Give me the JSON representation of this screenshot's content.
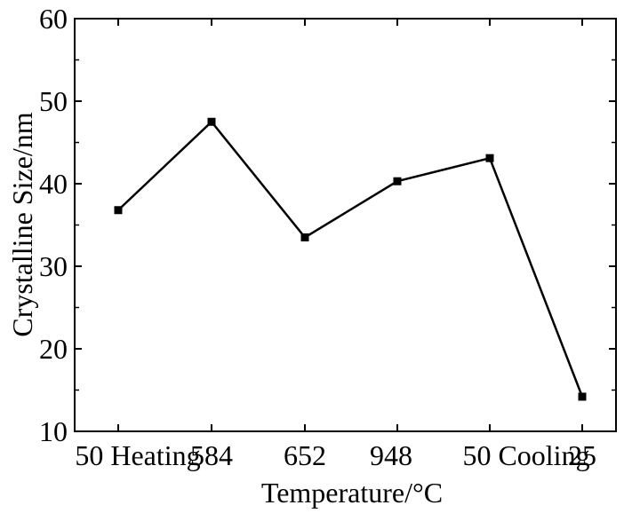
{
  "chart_data": {
    "type": "line",
    "categories": [
      "50 Heating",
      "584",
      "652",
      "948",
      "50 Cooling",
      "25"
    ],
    "series": [
      {
        "values": [
          36.8,
          47.5,
          33.5,
          40.3,
          43.1,
          14.2
        ]
      }
    ],
    "xlabel": "Temperature/°C",
    "ylabel": "Crystalline Size/nm",
    "ylim": [
      10,
      60
    ],
    "yticks": [
      10,
      20,
      30,
      40,
      50,
      60
    ],
    "grid": false,
    "legend": "none",
    "marker": "square",
    "line_color": "#000000"
  }
}
